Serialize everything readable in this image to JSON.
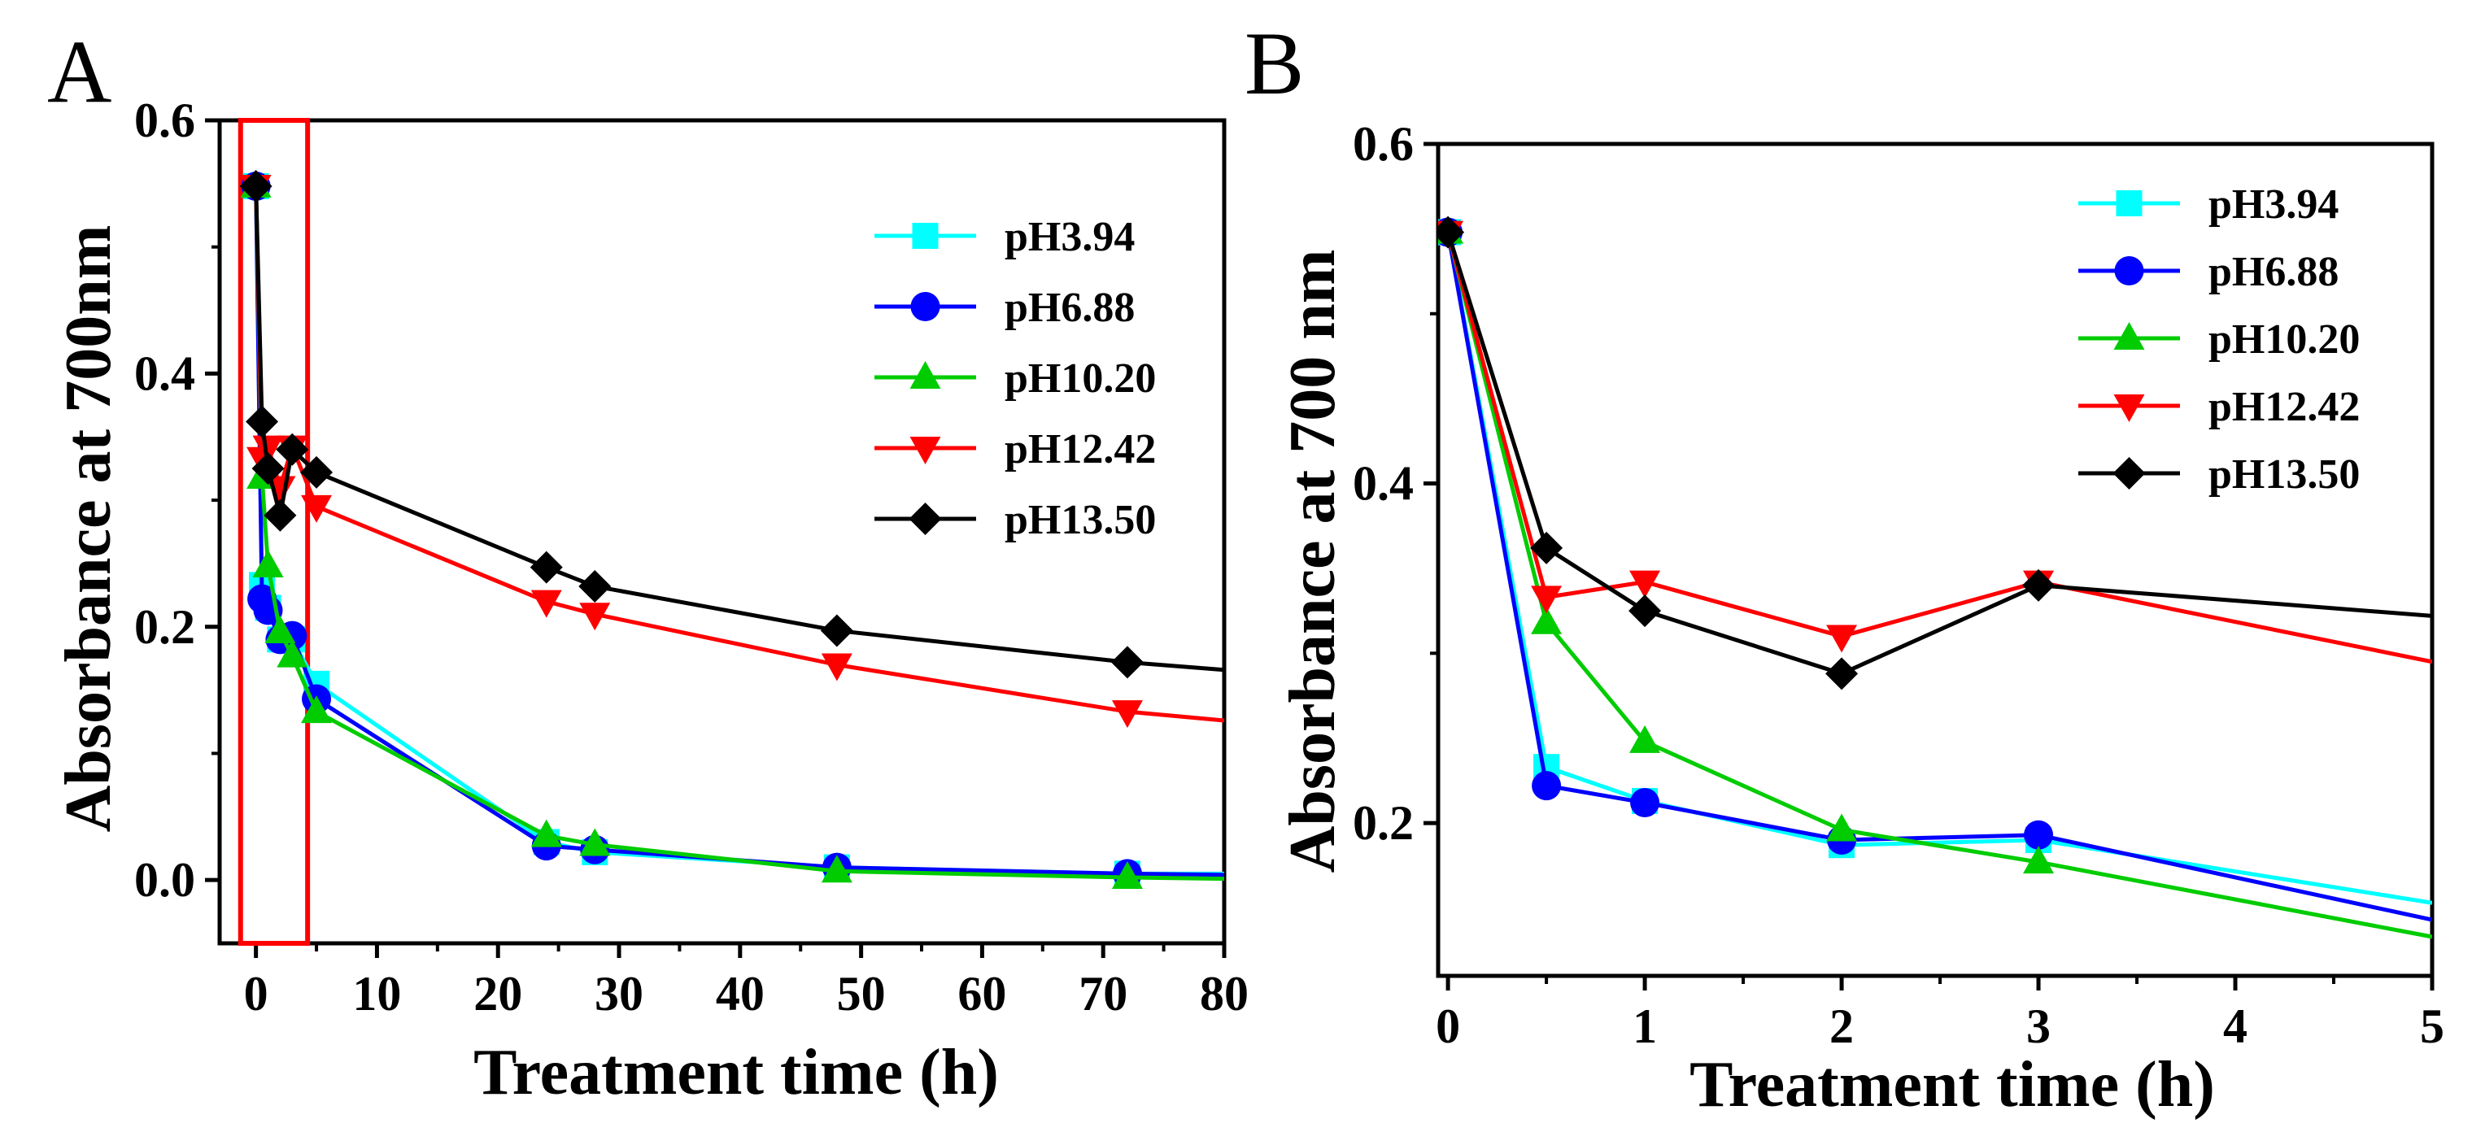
{
  "figure": {
    "panels": [
      {
        "letter": "A",
        "xlabel": "Treatment time (h)",
        "ylabel": "Absorbance at 700nm"
      },
      {
        "letter": "B",
        "xlabel": "Treatment time (h)",
        "ylabel": "Absorbance at 700 nm"
      }
    ]
  },
  "chart_data": [
    {
      "type": "line",
      "panel": "A",
      "title": "",
      "xlabel": "Treatment time (h)",
      "ylabel": "Absorbance at 700nm",
      "xlim": [
        -3,
        80
      ],
      "ylim": [
        -0.05,
        0.6
      ],
      "xticks": [
        0,
        10,
        20,
        30,
        40,
        50,
        60,
        70,
        80
      ],
      "yticks": [
        0.0,
        0.2,
        0.4,
        0.6
      ],
      "ytick_labels": [
        "0.0",
        "0.2",
        "0.4",
        "0.6"
      ],
      "grid": false,
      "legend_position": "top-right",
      "highlight_box": {
        "x": [
          -1,
          4
        ],
        "y": [
          -0.05,
          0.6
        ],
        "color": "#ff0000"
      },
      "x": [
        0,
        0.5,
        1,
        2,
        3,
        5,
        24,
        28,
        48,
        72,
        80
      ],
      "series": [
        {
          "name": "pH3.94",
          "color": "#00ffff",
          "marker": "square",
          "values": [
            0.548,
            0.233,
            0.215,
            0.19,
            0.19,
            0.155,
            0.03,
            0.022,
            0.01,
            0.005,
            0.005
          ]
        },
        {
          "name": "pH6.88",
          "color": "#0000ff",
          "marker": "circle",
          "values": [
            0.548,
            0.222,
            0.213,
            0.19,
            0.193,
            0.143,
            0.027,
            0.024,
            0.01,
            0.005,
            0.004
          ]
        },
        {
          "name": "pH10.20",
          "color": "#00cc00",
          "marker": "triangle-up",
          "values": [
            0.548,
            0.318,
            0.248,
            0.196,
            0.177,
            0.133,
            0.035,
            0.028,
            0.007,
            0.002,
            0.001
          ]
        },
        {
          "name": "pH12.42",
          "color": "#ff0000",
          "marker": "triangle-down",
          "values": [
            0.548,
            0.333,
            0.342,
            0.31,
            0.342,
            0.295,
            0.22,
            0.21,
            0.17,
            0.133,
            0.126
          ]
        },
        {
          "name": "pH13.50",
          "color": "#000000",
          "marker": "diamond",
          "values": [
            0.548,
            0.362,
            0.325,
            0.288,
            0.34,
            0.322,
            0.247,
            0.232,
            0.197,
            0.172,
            0.166
          ]
        }
      ]
    },
    {
      "type": "line",
      "panel": "B",
      "title": "",
      "xlabel": "Treatment time (h)",
      "ylabel": "Absorbance at 700 nm",
      "xlim": [
        -0.05,
        5
      ],
      "ylim": [
        0.11,
        0.6
      ],
      "xticks": [
        0,
        1,
        2,
        3,
        4,
        5
      ],
      "yticks": [
        0.2,
        0.4,
        0.6
      ],
      "ytick_labels": [
        "0.2",
        "0.4",
        "0.6"
      ],
      "grid": false,
      "legend_position": "top-right",
      "x": [
        0,
        0.5,
        1,
        2,
        3,
        5
      ],
      "series": [
        {
          "name": "pH3.94",
          "color": "#00ffff",
          "marker": "square",
          "values": [
            0.548,
            0.233,
            0.213,
            0.187,
            0.19,
            0.153
          ]
        },
        {
          "name": "pH6.88",
          "color": "#0000ff",
          "marker": "circle",
          "values": [
            0.548,
            0.222,
            0.212,
            0.19,
            0.193,
            0.143
          ]
        },
        {
          "name": "pH10.20",
          "color": "#00cc00",
          "marker": "triangle-up",
          "values": [
            0.548,
            0.318,
            0.248,
            0.196,
            0.177,
            0.133
          ]
        },
        {
          "name": "pH12.42",
          "color": "#ff0000",
          "marker": "triangle-down",
          "values": [
            0.548,
            0.333,
            0.342,
            0.31,
            0.342,
            0.295
          ]
        },
        {
          "name": "pH13.50",
          "color": "#000000",
          "marker": "diamond",
          "values": [
            0.548,
            0.362,
            0.325,
            0.288,
            0.34,
            0.322
          ]
        }
      ]
    }
  ]
}
